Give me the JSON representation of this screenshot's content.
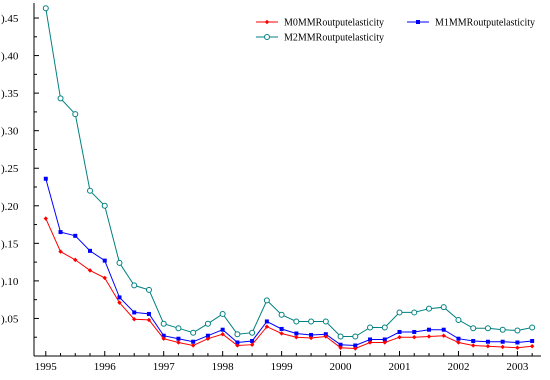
{
  "chart_data": {
    "type": "line",
    "title": "",
    "xlabel": "",
    "ylabel": "",
    "xlim": [
      1994.8,
      2003.4
    ],
    "ylim": [
      0.0,
      0.47
    ],
    "x_ticks": [
      1995,
      1996,
      1997,
      1998,
      1999,
      2000,
      2001,
      2002,
      2003
    ],
    "x_tick_labels": [
      "1995",
      "1996",
      "1997",
      "1998",
      "1999",
      "2000",
      "2001",
      "2002",
      "2003"
    ],
    "y_ticks": [
      0.05,
      0.1,
      0.15,
      0.2,
      0.25,
      0.3,
      0.35,
      0.4,
      0.45
    ],
    "y_tick_labels": [
      ").05",
      ").10",
      ").15",
      ").20",
      ").25",
      ").30",
      ").35",
      ").40",
      ").45"
    ],
    "grid": false,
    "legend_position": "top-right",
    "x": [
      1995.0,
      1995.25,
      1995.5,
      1995.75,
      1996.0,
      1996.25,
      1996.5,
      1996.75,
      1997.0,
      1997.25,
      1997.5,
      1997.75,
      1998.0,
      1998.25,
      1998.5,
      1998.75,
      1999.0,
      1999.25,
      1999.5,
      1999.75,
      2000.0,
      2000.25,
      2000.5,
      2000.75,
      2001.0,
      2001.25,
      2001.5,
      2001.75,
      2002.0,
      2002.25,
      2002.5,
      2002.75,
      2003.0,
      2003.25
    ],
    "series": [
      {
        "name": "M0MMRoutputelasticity",
        "color": "#ff0000",
        "marker": "diamond",
        "values": [
          0.183,
          0.139,
          0.128,
          0.114,
          0.104,
          0.071,
          0.049,
          0.048,
          0.023,
          0.018,
          0.014,
          0.023,
          0.029,
          0.014,
          0.015,
          0.039,
          0.03,
          0.025,
          0.024,
          0.026,
          0.011,
          0.01,
          0.018,
          0.018,
          0.025,
          0.025,
          0.026,
          0.027,
          0.018,
          0.014,
          0.013,
          0.012,
          0.011,
          0.013
        ]
      },
      {
        "name": "M1MMRoutputelasticity",
        "color": "#0000ff",
        "marker": "square",
        "values": [
          0.236,
          0.165,
          0.16,
          0.14,
          0.127,
          0.078,
          0.058,
          0.056,
          0.027,
          0.023,
          0.019,
          0.027,
          0.035,
          0.018,
          0.02,
          0.046,
          0.036,
          0.03,
          0.028,
          0.029,
          0.015,
          0.014,
          0.022,
          0.022,
          0.032,
          0.032,
          0.035,
          0.035,
          0.023,
          0.02,
          0.019,
          0.019,
          0.018,
          0.02
        ]
      },
      {
        "name": "M2MMRoutputelasticity",
        "color": "#008080",
        "marker": "circle",
        "values": [
          0.463,
          0.343,
          0.322,
          0.22,
          0.2,
          0.124,
          0.094,
          0.088,
          0.043,
          0.037,
          0.031,
          0.043,
          0.056,
          0.029,
          0.031,
          0.074,
          0.055,
          0.046,
          0.046,
          0.046,
          0.026,
          0.026,
          0.038,
          0.038,
          0.058,
          0.058,
          0.063,
          0.065,
          0.048,
          0.037,
          0.037,
          0.035,
          0.034,
          0.038
        ]
      }
    ]
  }
}
